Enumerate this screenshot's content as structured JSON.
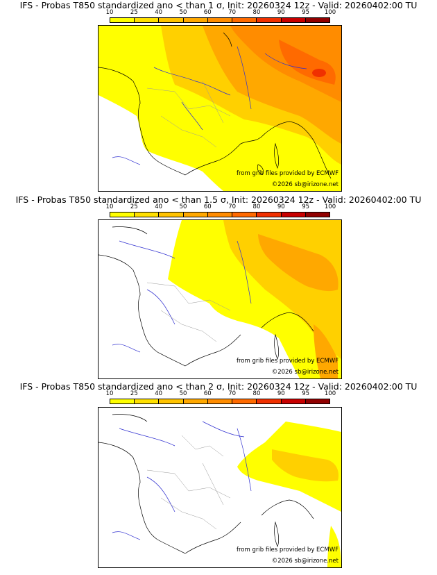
{
  "legend": {
    "ticks": [
      "10",
      "25",
      "40",
      "50",
      "60",
      "70",
      "80",
      "90",
      "95",
      "100"
    ],
    "colors": [
      "#ffff00",
      "#ffe000",
      "#ffc300",
      "#ffa800",
      "#ff8c00",
      "#ff6a00",
      "#f03000",
      "#c80000",
      "#900000",
      "#600000"
    ]
  },
  "credits": {
    "source": "from grib files provided by ECMWF",
    "copyright": "©2026 sb@irizone.net"
  },
  "panels": [
    {
      "title": "IFS - Probas T850  standardized ano < than 1 σ, Init: 20260324 12z - Valid: 20260402:00 TU"
    },
    {
      "title": "IFS - Probas T850  standardized ano < than 1.5 σ, Init: 20260324 12z - Valid: 20260402:00 TU"
    },
    {
      "title": "IFS - Probas T850  standardized ano < than 2 σ, Init: 20260324 12z - Valid: 20260402:00 TU"
    }
  ]
}
